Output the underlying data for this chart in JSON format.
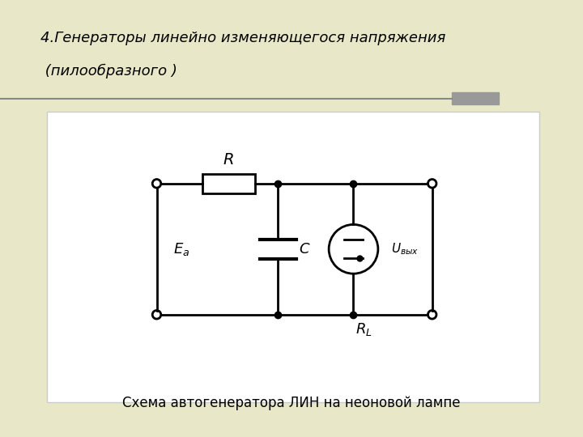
{
  "title_line1": "4.Генераторы линейно изменяющегося напряжения",
  "title_line2": " (пилообразного )",
  "caption": "Схема автогенератора ЛИН на неоновой лампе",
  "bg_color": "#e8e8c8",
  "diagram_bg": "#ffffff",
  "label_R": "R",
  "label_C": "C",
  "label_Ea": "Ea",
  "label_Uvyx": "Uвых",
  "label_RL": "RL",
  "lw": 2.0,
  "line_color": "#000000",
  "title_color": "#000000",
  "caption_color": "#000000",
  "sep_color": "#888888",
  "sep_rect_color": "#999999"
}
